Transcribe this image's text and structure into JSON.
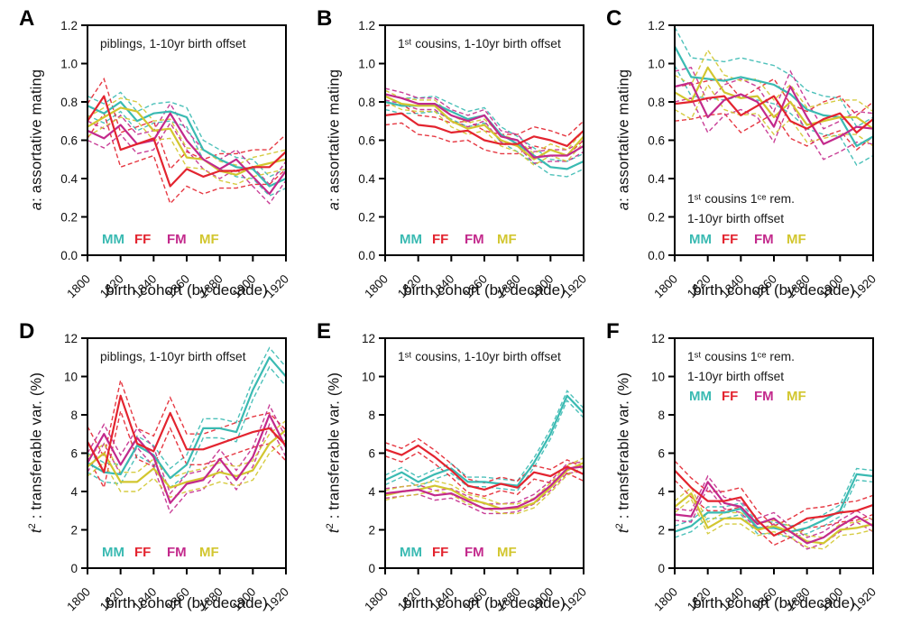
{
  "figure": {
    "background": "#ffffff",
    "text_color": "#111111",
    "axis_color": "#000000",
    "series_colors": {
      "MM": "#3ABAB2",
      "FF": "#E3242F",
      "FM": "#C32A8C",
      "MF": "#D2C62F"
    }
  },
  "chart_data": [
    {
      "panel_label": "A",
      "type": "line",
      "title_lines": [
        "piblings, 1-10yr birth offset"
      ],
      "title_position": "top",
      "legend_position": "bottom",
      "xlabel": "birth cohort (by decade)",
      "ylabel_var": "a",
      "ylabel_rest": ": assortative mating",
      "x": [
        1800,
        1810,
        1820,
        1830,
        1840,
        1850,
        1860,
        1870,
        1880,
        1890,
        1900,
        1910,
        1920
      ],
      "xticks": [
        1800,
        1820,
        1840,
        1860,
        1880,
        1900,
        1920
      ],
      "ylim": [
        0,
        1.2
      ],
      "yticks": [
        "0.0",
        "0.2",
        "0.4",
        "0.6",
        "0.8",
        "1.0",
        "1.2"
      ],
      "series": [
        {
          "name": "MM",
          "color": "#3ABAB2",
          "ci": 0.05,
          "values": [
            0.78,
            0.74,
            0.8,
            0.7,
            0.74,
            0.75,
            0.72,
            0.55,
            0.5,
            0.46,
            0.45,
            0.36,
            0.4
          ]
        },
        {
          "name": "FF",
          "color": "#E3242F",
          "ci": 0.09,
          "values": [
            0.7,
            0.83,
            0.55,
            0.58,
            0.61,
            0.36,
            0.45,
            0.41,
            0.44,
            0.44,
            0.46,
            0.46,
            0.54
          ]
        },
        {
          "name": "FM",
          "color": "#C32A8C",
          "ci": 0.05,
          "values": [
            0.65,
            0.61,
            0.68,
            0.58,
            0.6,
            0.74,
            0.6,
            0.5,
            0.45,
            0.5,
            0.41,
            0.32,
            0.44
          ]
        },
        {
          "name": "MF",
          "color": "#D2C62F",
          "ci": 0.05,
          "values": [
            0.67,
            0.72,
            0.77,
            0.75,
            0.65,
            0.66,
            0.51,
            0.5,
            0.44,
            0.42,
            0.46,
            0.48,
            0.5
          ]
        }
      ]
    },
    {
      "panel_label": "B",
      "type": "line",
      "title_lines": [
        "1ˢᵗ cousins, 1-10yr birth offset"
      ],
      "title_position": "top",
      "legend_position": "bottom",
      "xlabel": "birth cohort (by decade)",
      "ylabel_var": "a",
      "ylabel_rest": ": assortative mating",
      "x": [
        1800,
        1810,
        1820,
        1830,
        1840,
        1850,
        1860,
        1870,
        1880,
        1890,
        1900,
        1910,
        1920
      ],
      "xticks": [
        1800,
        1820,
        1840,
        1860,
        1880,
        1900,
        1920
      ],
      "ylim": [
        0,
        1.2
      ],
      "yticks": [
        "0.0",
        "0.2",
        "0.4",
        "0.6",
        "0.8",
        "1.0",
        "1.2"
      ],
      "series": [
        {
          "name": "MM",
          "color": "#3ABAB2",
          "ci": 0.04,
          "values": [
            0.8,
            0.78,
            0.78,
            0.79,
            0.75,
            0.71,
            0.73,
            0.63,
            0.58,
            0.52,
            0.46,
            0.45,
            0.49
          ]
        },
        {
          "name": "FF",
          "color": "#E3242F",
          "ci": 0.05,
          "values": [
            0.73,
            0.74,
            0.68,
            0.67,
            0.64,
            0.65,
            0.6,
            0.58,
            0.58,
            0.62,
            0.6,
            0.57,
            0.65
          ]
        },
        {
          "name": "FM",
          "color": "#C32A8C",
          "ci": 0.03,
          "values": [
            0.84,
            0.82,
            0.79,
            0.79,
            0.73,
            0.7,
            0.73,
            0.62,
            0.6,
            0.51,
            0.52,
            0.52,
            0.57
          ]
        },
        {
          "name": "MF",
          "color": "#D2C62F",
          "ci": 0.03,
          "values": [
            0.83,
            0.79,
            0.78,
            0.78,
            0.7,
            0.66,
            0.68,
            0.6,
            0.57,
            0.5,
            0.55,
            0.52,
            0.62
          ]
        }
      ]
    },
    {
      "panel_label": "C",
      "type": "line",
      "title_lines": [
        "1ˢᵗ cousins 1ᶜᵉ rem.",
        "1-10yr birth offset"
      ],
      "title_position": "bottom",
      "legend_position": "bottom",
      "xlabel": "birth cohort (by decade)",
      "ylabel_var": "a",
      "ylabel_rest": ": assortative mating",
      "x": [
        1800,
        1810,
        1820,
        1830,
        1840,
        1850,
        1860,
        1870,
        1880,
        1890,
        1900,
        1910,
        1920
      ],
      "xticks": [
        1800,
        1820,
        1840,
        1860,
        1880,
        1900,
        1920
      ],
      "ylim": [
        0,
        1.2
      ],
      "yticks": [
        "0.0",
        "0.2",
        "0.4",
        "0.6",
        "0.8",
        "1.0",
        "1.2"
      ],
      "series": [
        {
          "name": "MM",
          "color": "#3ABAB2",
          "ci": 0.1,
          "values": [
            1.09,
            0.93,
            0.92,
            0.91,
            0.93,
            0.91,
            0.89,
            0.84,
            0.76,
            0.73,
            0.72,
            0.57,
            0.62
          ]
        },
        {
          "name": "FF",
          "color": "#E3242F",
          "ci": 0.09,
          "values": [
            0.79,
            0.8,
            0.82,
            0.83,
            0.73,
            0.78,
            0.83,
            0.7,
            0.66,
            0.71,
            0.74,
            0.64,
            0.71
          ]
        },
        {
          "name": "FM",
          "color": "#C32A8C",
          "ci": 0.08,
          "values": [
            0.88,
            0.9,
            0.72,
            0.81,
            0.84,
            0.8,
            0.67,
            0.88,
            0.72,
            0.58,
            0.62,
            0.67,
            0.66
          ]
        },
        {
          "name": "MF",
          "color": "#D2C62F",
          "ci": 0.09,
          "values": [
            0.85,
            0.8,
            0.98,
            0.85,
            0.82,
            0.83,
            0.72,
            0.8,
            0.68,
            0.7,
            0.72,
            0.72,
            0.66
          ]
        }
      ]
    },
    {
      "panel_label": "D",
      "type": "line",
      "title_lines": [
        "piblings, 1-10yr birth offset"
      ],
      "title_position": "top",
      "legend_position": "bottom",
      "xlabel": "birth cohort (by decade)",
      "ylabel_var": "t",
      "ylabel_sup": "2",
      "ylabel_rest": " : transferable var. (%)",
      "x": [
        1800,
        1810,
        1820,
        1830,
        1840,
        1850,
        1860,
        1870,
        1880,
        1890,
        1900,
        1910,
        1920
      ],
      "xticks": [
        1800,
        1820,
        1840,
        1860,
        1880,
        1900,
        1920
      ],
      "ylim": [
        0,
        12
      ],
      "yticks": [
        "0",
        "2",
        "4",
        "6",
        "8",
        "10",
        "12"
      ],
      "series": [
        {
          "name": "MM",
          "color": "#3ABAB2",
          "ci": 0.5,
          "values": [
            5.5,
            5.0,
            4.9,
            6.4,
            5.9,
            4.7,
            5.4,
            7.3,
            7.3,
            7.1,
            9.3,
            11.0,
            10.0
          ]
        },
        {
          "name": "FF",
          "color": "#E3242F",
          "ci": 0.8,
          "values": [
            6.6,
            5.0,
            9.0,
            6.5,
            6.1,
            8.1,
            6.2,
            6.2,
            6.5,
            6.8,
            7.1,
            7.3,
            6.4
          ]
        },
        {
          "name": "FM",
          "color": "#C32A8C",
          "ci": 0.5,
          "values": [
            5.5,
            7.0,
            5.4,
            6.8,
            5.8,
            3.4,
            4.4,
            4.6,
            5.7,
            4.6,
            5.8,
            8.0,
            6.3
          ]
        },
        {
          "name": "MF",
          "color": "#D2C62F",
          "ci": 0.5,
          "values": [
            5.3,
            6.0,
            4.5,
            4.5,
            5.2,
            4.2,
            4.5,
            4.7,
            5.0,
            4.8,
            5.1,
            6.5,
            7.2
          ]
        }
      ]
    },
    {
      "panel_label": "E",
      "type": "line",
      "title_lines": [
        "1ˢᵗ cousins, 1-10yr birth offset"
      ],
      "title_position": "top",
      "legend_position": "bottom",
      "xlabel": "birth cohort (by decade)",
      "ylabel_var": "t",
      "ylabel_sup": "2",
      "ylabel_rest": " : transferable var. (%)",
      "x": [
        1800,
        1810,
        1820,
        1830,
        1840,
        1850,
        1860,
        1870,
        1880,
        1890,
        1900,
        1910,
        1920
      ],
      "xticks": [
        1800,
        1820,
        1840,
        1860,
        1880,
        1900,
        1920
      ],
      "ylim": [
        0,
        12
      ],
      "yticks": [
        "0",
        "2",
        "4",
        "6",
        "8",
        "10",
        "12"
      ],
      "series": [
        {
          "name": "MM",
          "color": "#3ABAB2",
          "ci": 0.25,
          "values": [
            4.6,
            5.0,
            4.5,
            4.9,
            5.2,
            4.5,
            4.5,
            4.4,
            4.3,
            5.5,
            7.0,
            9.0,
            8.1
          ]
        },
        {
          "name": "FF",
          "color": "#E3242F",
          "ci": 0.35,
          "values": [
            6.2,
            5.9,
            6.4,
            5.8,
            5.1,
            4.3,
            4.1,
            4.4,
            4.2,
            5.0,
            4.8,
            5.3,
            4.9
          ]
        },
        {
          "name": "FM",
          "color": "#C32A8C",
          "ci": 0.25,
          "values": [
            3.9,
            4.0,
            4.1,
            3.8,
            3.9,
            3.5,
            3.1,
            3.1,
            3.2,
            3.6,
            4.3,
            5.2,
            5.3
          ]
        },
        {
          "name": "MF",
          "color": "#D2C62F",
          "ci": 0.25,
          "values": [
            3.8,
            4.0,
            4.1,
            4.3,
            4.1,
            3.6,
            3.4,
            3.1,
            3.1,
            3.4,
            4.2,
            5.1,
            5.5
          ]
        }
      ]
    },
    {
      "panel_label": "F",
      "type": "line",
      "title_lines": [
        "1ˢᵗ cousins 1ᶜᵉ rem.",
        "1-10yr birth offset"
      ],
      "title_position": "top",
      "legend_position": "top",
      "xlabel": "birth cohort (by decade)",
      "ylabel_var": "t",
      "ylabel_sup": "2",
      "ylabel_rest": " : transferable var. (%)",
      "x": [
        1800,
        1810,
        1820,
        1830,
        1840,
        1850,
        1860,
        1870,
        1880,
        1890,
        1900,
        1910,
        1920
      ],
      "xticks": [
        1800,
        1820,
        1840,
        1860,
        1880,
        1900,
        1920
      ],
      "ylim": [
        0,
        12
      ],
      "yticks": [
        "0",
        "2",
        "4",
        "6",
        "8",
        "10",
        "12"
      ],
      "series": [
        {
          "name": "MM",
          "color": "#3ABAB2",
          "ci": 0.3,
          "values": [
            1.9,
            2.2,
            2.9,
            2.9,
            3.1,
            2.1,
            2.1,
            1.9,
            2.1,
            2.5,
            3.0,
            4.9,
            4.8
          ]
        },
        {
          "name": "FF",
          "color": "#E3242F",
          "ci": 0.5,
          "values": [
            5.1,
            4.2,
            3.5,
            3.5,
            3.7,
            2.5,
            1.7,
            2.1,
            2.6,
            2.7,
            2.9,
            3.0,
            3.3
          ]
        },
        {
          "name": "FM",
          "color": "#C32A8C",
          "ci": 0.3,
          "values": [
            2.8,
            2.7,
            4.5,
            3.4,
            3.2,
            2.3,
            2.6,
            1.9,
            1.3,
            1.6,
            2.2,
            2.7,
            2.2
          ]
        },
        {
          "name": "MF",
          "color": "#D2C62F",
          "ci": 0.3,
          "values": [
            3.2,
            3.9,
            2.1,
            2.6,
            2.6,
            2.0,
            2.2,
            1.9,
            1.4,
            1.3,
            2.0,
            2.1,
            2.3
          ]
        }
      ]
    }
  ]
}
